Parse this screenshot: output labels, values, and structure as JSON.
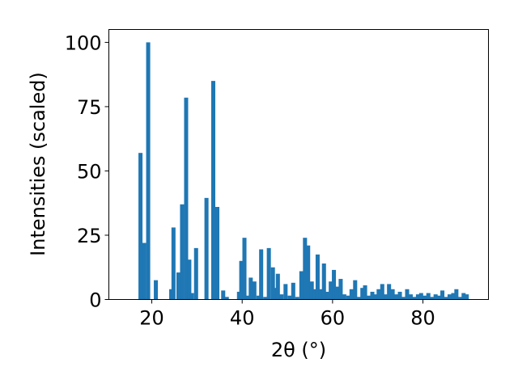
{
  "chart_data": {
    "type": "bar",
    "title": "",
    "xlabel": "2θ (°)",
    "ylabel": "Intensities (scaled)",
    "xlim": [
      10.5,
      94.5
    ],
    "ylim": [
      0,
      105
    ],
    "xticks": [
      20,
      40,
      60,
      80
    ],
    "yticks": [
      0,
      25,
      50,
      75,
      100
    ],
    "grid": false,
    "bar_color": "#1f77b4",
    "bar_width_deg": 0.9,
    "bars": [
      {
        "x": 17.5,
        "y": 57
      },
      {
        "x": 18.3,
        "y": 22
      },
      {
        "x": 19.2,
        "y": 100
      },
      {
        "x": 20.9,
        "y": 7.5
      },
      {
        "x": 24.3,
        "y": 4
      },
      {
        "x": 24.8,
        "y": 28
      },
      {
        "x": 25.9,
        "y": 10.5
      },
      {
        "x": 26.7,
        "y": 37
      },
      {
        "x": 27.6,
        "y": 78.5
      },
      {
        "x": 28.3,
        "y": 15.5
      },
      {
        "x": 28.9,
        "y": 2.5
      },
      {
        "x": 29.8,
        "y": 20
      },
      {
        "x": 32.1,
        "y": 39.5
      },
      {
        "x": 33.6,
        "y": 85
      },
      {
        "x": 34.5,
        "y": 36
      },
      {
        "x": 35.8,
        "y": 3.5
      },
      {
        "x": 36.6,
        "y": 1
      },
      {
        "x": 39.3,
        "y": 3
      },
      {
        "x": 39.8,
        "y": 15
      },
      {
        "x": 40.5,
        "y": 24
      },
      {
        "x": 41.3,
        "y": 1.5
      },
      {
        "x": 41.9,
        "y": 8.5
      },
      {
        "x": 42.7,
        "y": 7
      },
      {
        "x": 43.6,
        "y": 1.5
      },
      {
        "x": 44.2,
        "y": 19.5
      },
      {
        "x": 45.1,
        "y": 1
      },
      {
        "x": 45.9,
        "y": 20
      },
      {
        "x": 46.8,
        "y": 12.5
      },
      {
        "x": 47.4,
        "y": 4.5
      },
      {
        "x": 47.9,
        "y": 10
      },
      {
        "x": 48.7,
        "y": 2
      },
      {
        "x": 49.6,
        "y": 6
      },
      {
        "x": 50.5,
        "y": 1.5
      },
      {
        "x": 51.3,
        "y": 6.5
      },
      {
        "x": 52.2,
        "y": 1
      },
      {
        "x": 53.1,
        "y": 11
      },
      {
        "x": 53.9,
        "y": 24
      },
      {
        "x": 54.6,
        "y": 21
      },
      {
        "x": 55.4,
        "y": 7
      },
      {
        "x": 56.0,
        "y": 4
      },
      {
        "x": 56.7,
        "y": 17.5
      },
      {
        "x": 57.4,
        "y": 4
      },
      {
        "x": 58.1,
        "y": 14
      },
      {
        "x": 58.9,
        "y": 3
      },
      {
        "x": 59.6,
        "y": 7
      },
      {
        "x": 60.3,
        "y": 11.5
      },
      {
        "x": 61.0,
        "y": 5
      },
      {
        "x": 61.8,
        "y": 8
      },
      {
        "x": 62.6,
        "y": 2
      },
      {
        "x": 63.5,
        "y": 1.5
      },
      {
        "x": 64.2,
        "y": 4
      },
      {
        "x": 65.0,
        "y": 7.5
      },
      {
        "x": 65.8,
        "y": 1
      },
      {
        "x": 66.6,
        "y": 4.5
      },
      {
        "x": 67.2,
        "y": 5.5
      },
      {
        "x": 68.0,
        "y": 1.5
      },
      {
        "x": 68.8,
        "y": 3
      },
      {
        "x": 69.5,
        "y": 2
      },
      {
        "x": 70.2,
        "y": 4
      },
      {
        "x": 71.0,
        "y": 6
      },
      {
        "x": 71.8,
        "y": 2
      },
      {
        "x": 72.5,
        "y": 6
      },
      {
        "x": 73.3,
        "y": 4
      },
      {
        "x": 74.1,
        "y": 2
      },
      {
        "x": 74.9,
        "y": 3
      },
      {
        "x": 75.6,
        "y": 1
      },
      {
        "x": 76.5,
        "y": 4
      },
      {
        "x": 77.3,
        "y": 2
      },
      {
        "x": 78.1,
        "y": 1
      },
      {
        "x": 78.9,
        "y": 2
      },
      {
        "x": 79.6,
        "y": 2.5
      },
      {
        "x": 80.4,
        "y": 1.5
      },
      {
        "x": 81.2,
        "y": 2.5
      },
      {
        "x": 82.0,
        "y": 1
      },
      {
        "x": 82.8,
        "y": 2
      },
      {
        "x": 83.5,
        "y": 1.5
      },
      {
        "x": 84.3,
        "y": 3.5
      },
      {
        "x": 85.1,
        "y": 1
      },
      {
        "x": 85.9,
        "y": 2
      },
      {
        "x": 86.7,
        "y": 2.5
      },
      {
        "x": 87.4,
        "y": 4
      },
      {
        "x": 88.2,
        "y": 1
      },
      {
        "x": 89.0,
        "y": 2.5
      },
      {
        "x": 89.7,
        "y": 2
      }
    ]
  }
}
